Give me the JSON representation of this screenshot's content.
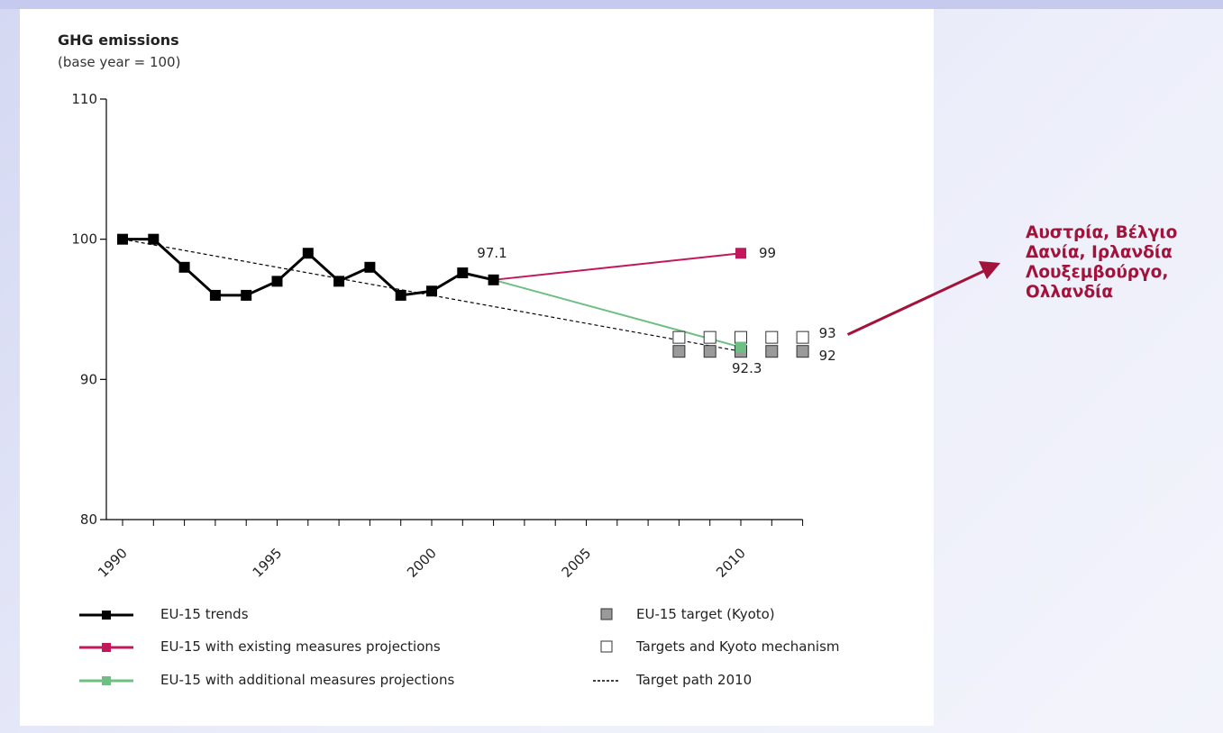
{
  "chart_data": {
    "type": "line",
    "title": "GHG emissions",
    "subtitle": "(base year = 100)",
    "ylim": [
      80,
      110
    ],
    "yticks": [
      80,
      90,
      100,
      110
    ],
    "xlim": [
      1990,
      2012
    ],
    "xticks": [
      1990,
      1995,
      2000,
      2005,
      2010
    ],
    "series": [
      {
        "name": "EU-15 trends",
        "color": "#000000",
        "x": [
          1990,
          1991,
          1992,
          1993,
          1994,
          1995,
          1996,
          1997,
          1998,
          1999,
          2000,
          2001,
          2002
        ],
        "values": [
          100,
          100,
          98,
          96,
          96,
          97,
          99,
          97,
          98,
          96,
          96.3,
          97.6,
          97.1
        ]
      },
      {
        "name": "EU-15 with existing measures projections",
        "color": "#c2185b",
        "x": [
          2002,
          2010
        ],
        "values": [
          97.1,
          99
        ]
      },
      {
        "name": "EU-15 with additional measures projections",
        "color": "#6fbf85",
        "x": [
          2002,
          2010
        ],
        "values": [
          97.1,
          92.3
        ]
      },
      {
        "name": "Target path 2010",
        "color": "#000000",
        "style": "dashed",
        "x": [
          1990,
          2010
        ],
        "values": [
          100,
          92
        ]
      }
    ],
    "markers": [
      {
        "name": "EU-15 target (Kyoto)",
        "fill": "#9a9a9a",
        "x": [
          2008,
          2009,
          2010,
          2011,
          2012
        ],
        "values": [
          92,
          92,
          92,
          92,
          92
        ]
      },
      {
        "name": "Targets and Kyoto mechanism",
        "fill": "#ffffff",
        "x": [
          2008,
          2009,
          2010,
          2011,
          2012
        ],
        "values": [
          93,
          93,
          93,
          93,
          93
        ]
      }
    ],
    "annotations": [
      "97.1",
      "99",
      "93",
      "92",
      "92.3"
    ]
  },
  "legend": {
    "trends": "EU-15 trends",
    "existing": "EU-15 with existing measures projections",
    "additional": "EU-15 with additional measures projections",
    "kyoto_target": "EU-15 target (Kyoto)",
    "kyoto_mechanism": "Targets and Kyoto mechanism",
    "target_path": "Target path 2010"
  },
  "callout": {
    "lines": [
      "Αυστρία, Βέλγιο",
      "Δανία, Ιρλανδία",
      "Λουξεμβούργο,",
      "Ολλανδία"
    ],
    "color": "#a3123a"
  }
}
